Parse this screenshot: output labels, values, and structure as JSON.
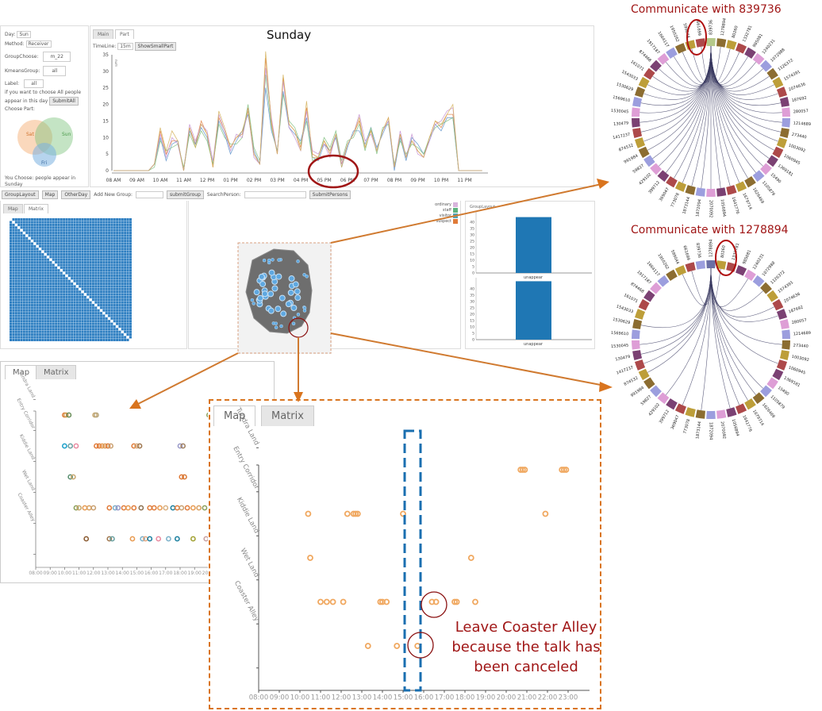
{
  "controls": {
    "day_label": "Day:",
    "day_value": "Sun",
    "method_label": "Method:",
    "method_value": "Receiver",
    "group_label": "GroupChoose:",
    "group_value": "m_22",
    "kmeans_label": "KmeansGroup:",
    "kmeans_value": "all",
    "label_label": "Label:",
    "label_value": "all",
    "hint_line1": "if you want to choose All people",
    "hint_line2": "appear in this day",
    "submit_all": "SubmitAll",
    "choose_part": "Choose Part:",
    "venn": [
      "Sat",
      "Sun",
      "Fri"
    ],
    "you_choose_line1": "You Choose: people appear in",
    "you_choose_line2": "Sunday"
  },
  "timeline": {
    "tabs": [
      "Main",
      "Part"
    ],
    "active_tab": "Part",
    "timeline_label": "TimeLine:",
    "timeline_value": "15m",
    "show_small_part": "ShowSmallPart",
    "title": "Sunday"
  },
  "toolbar": {
    "group_layout": "GroupLayout",
    "map": "Map",
    "other_day": "OtherDay",
    "add_group_label": "Add New Group:",
    "submit_group": "submitGroup",
    "search_label": "SearchPerson:",
    "submit_persons": "SubmitPersons"
  },
  "matrix_panel": {
    "tabs": [
      "Map",
      "Matrix"
    ],
    "active_tab": "Matrix",
    "color": "#2f7fc1"
  },
  "legend": [
    {
      "label": "ordinary",
      "color": "#d8b4dc"
    },
    {
      "label": "staff",
      "color": "#5db37e"
    },
    {
      "label": "visitor",
      "color": "#4fa3b8"
    },
    {
      "label": "suspect",
      "color": "#e07b39"
    }
  ],
  "group_layout": {
    "title": "GroupLayout",
    "charts": [
      {
        "category": "unappear",
        "value": 44,
        "ymax": 45
      },
      {
        "category": "unappear",
        "value": 46,
        "ymax": 45
      }
    ],
    "bar_color": "#1f77b4"
  },
  "chords": [
    {
      "title": "Communicate with 839736",
      "highlight": "839736",
      "connect_all": true
    },
    {
      "title": "Communicate with 1278894",
      "highlight": "1278894",
      "connect_all": false,
      "connected": [
        "661699",
        "599044",
        "80260",
        "1240231",
        "1126372",
        "2074636",
        "187692",
        "273440",
        "1060945",
        "1105879",
        "1626469",
        "1679714",
        "1641776",
        "1056894",
        "1873144",
        "369047",
        "429102",
        "874532",
        "1417237",
        "130479",
        "1530045",
        "1530629"
      ]
    }
  ],
  "chord_nodes": [
    "839736",
    "1278894",
    "80260",
    "1332781",
    "985081",
    "1240231",
    "1072988",
    "1126372",
    "1574391",
    "2074636",
    "187692",
    "280057",
    "1214689",
    "273440",
    "1003092",
    "1060945",
    "1369181",
    "15490",
    "1105879",
    "1626469",
    "1679714",
    "1641776",
    "1056894",
    "2070092",
    "1872094",
    "1873144",
    "773078",
    "369047",
    "399712",
    "429102",
    "59827",
    "991984",
    "874532",
    "1417237",
    "130479",
    "1530045",
    "1569610",
    "1530629",
    "1543033",
    "161071",
    "874468",
    "1917187",
    "1664117",
    "1950262",
    "599044",
    "661699"
  ],
  "map_small": {
    "tabs": [
      "Map",
      "Matrix"
    ],
    "active_tab": "Map"
  },
  "map_large": {
    "tabs": [
      "Map",
      "Matrix"
    ],
    "active_tab": "Map",
    "annotation": [
      "Leave Coaster Alley",
      "because the talk has",
      "been canceled"
    ]
  },
  "chart_data": [
    {
      "type": "line",
      "title": "Sunday",
      "ylabel": "num",
      "ylim": [
        0,
        35
      ],
      "yticks": [
        0,
        5,
        10,
        15,
        20,
        25,
        30,
        35
      ],
      "xticks": [
        "08 AM",
        "09 AM",
        "10 AM",
        "11 AM",
        "12 PM",
        "01 PM",
        "02 PM",
        "03 PM",
        "04 PM",
        "05 PM",
        "06 PM",
        "07 PM",
        "08 PM",
        "09 PM",
        "10 PM",
        "11 PM"
      ],
      "x_start": "08:00",
      "x_step_minutes": 15,
      "series": [
        {
          "color": "#e07b39",
          "values": [
            0,
            0,
            0,
            0,
            0,
            0,
            0,
            2,
            12,
            5,
            9,
            9,
            0,
            13,
            8,
            15,
            11,
            1,
            16,
            12,
            7,
            10,
            11,
            19,
            5,
            2,
            34,
            15,
            5,
            28,
            14,
            12,
            7,
            19,
            5,
            4,
            9,
            5,
            11,
            2,
            8,
            11,
            15,
            7,
            12,
            6,
            12,
            16,
            1,
            11,
            4,
            9,
            6,
            4,
            10,
            15,
            13,
            17,
            17,
            0,
            0,
            0,
            0,
            0
          ]
        },
        {
          "color": "#5b8fc9",
          "values": [
            0,
            0,
            0,
            0,
            0,
            0,
            0,
            2,
            10,
            3,
            8,
            9,
            0,
            12,
            8,
            13,
            10,
            2,
            15,
            11,
            5,
            9,
            12,
            17,
            6,
            2,
            25,
            12,
            6,
            24,
            13,
            11,
            9,
            16,
            4,
            3,
            8,
            6,
            10,
            1,
            7,
            12,
            12,
            8,
            13,
            7,
            11,
            15,
            0,
            10,
            3,
            10,
            8,
            5,
            9,
            14,
            12,
            16,
            16,
            0,
            0,
            0,
            0,
            0
          ]
        },
        {
          "color": "#7fbf7f",
          "values": [
            0,
            0,
            0,
            0,
            0,
            0,
            0,
            1,
            9,
            6,
            7,
            8,
            1,
            11,
            7,
            12,
            9,
            2,
            14,
            10,
            8,
            8,
            10,
            20,
            7,
            3,
            29,
            13,
            6,
            23,
            15,
            13,
            8,
            15,
            3,
            4,
            10,
            7,
            12,
            3,
            9,
            10,
            14,
            6,
            13,
            5,
            13,
            14,
            2,
            9,
            5,
            8,
            7,
            5,
            10,
            13,
            14,
            15,
            16,
            0,
            0,
            0,
            0,
            0
          ]
        },
        {
          "color": "#c58fd0",
          "values": [
            0,
            0,
            0,
            0,
            0,
            0,
            0,
            2,
            11,
            4,
            10,
            8,
            0,
            14,
            9,
            14,
            12,
            3,
            17,
            12,
            6,
            11,
            10,
            18,
            4,
            2,
            31,
            16,
            5,
            27,
            13,
            10,
            6,
            18,
            6,
            5,
            8,
            4,
            11,
            2,
            8,
            11,
            17,
            9,
            11,
            6,
            12,
            15,
            1,
            12,
            4,
            11,
            5,
            4,
            9,
            14,
            15,
            18,
            19,
            0,
            0,
            0,
            0,
            0
          ]
        },
        {
          "color": "#d4b05a",
          "values": [
            0,
            0,
            0,
            0,
            0,
            0,
            0,
            2,
            13,
            6,
            12,
            9,
            0,
            13,
            7,
            14,
            11,
            1,
            18,
            13,
            7,
            10,
            12,
            18,
            5,
            2,
            36,
            14,
            5,
            29,
            14,
            12,
            6,
            21,
            4,
            4,
            9,
            6,
            11,
            1,
            8,
            11,
            16,
            7,
            12,
            6,
            12,
            16,
            1,
            11,
            4,
            9,
            6,
            4,
            10,
            15,
            14,
            17,
            20,
            0,
            0,
            0,
            0,
            0
          ]
        }
      ]
    },
    {
      "type": "scatter",
      "categories": [
        "Tundra Land",
        "Entry Corridor",
        "Kiddie Land",
        "Wet Land",
        "Coaster Alley"
      ],
      "xticks": [
        "08:00",
        "09:00",
        "10:00",
        "11:00",
        "12:00",
        "13:00",
        "14:00",
        "15:00",
        "16:00",
        "17:00",
        "18:00",
        "19:00",
        "20:00",
        "21:00",
        "22:00",
        "23:00"
      ],
      "xlim": [
        8,
        24
      ],
      "points_color": "#f0a860",
      "points": [
        {
          "cat": "Tundra Land",
          "x": [
            20.7,
            20.8,
            20.9,
            22.7,
            22.8,
            22.9
          ]
        },
        {
          "cat": "Entry Corridor",
          "x": [
            10.4,
            12.3,
            12.6,
            12.7,
            12.8,
            15.0,
            21.9
          ]
        },
        {
          "cat": "Kiddie Land",
          "x": [
            10.5,
            18.3
          ]
        },
        {
          "cat": "Wet Land",
          "x": [
            11.0,
            11.3,
            11.6,
            12.1,
            13.9,
            14.0,
            14.2,
            16.4,
            16.6,
            17.5,
            17.6,
            18.5
          ]
        },
        {
          "cat": "Coaster Alley",
          "x": [
            13.3,
            14.7,
            15.7
          ]
        }
      ]
    },
    {
      "type": "scatter",
      "categories": [
        "Tundra Land",
        "Entry Corridor",
        "Kiddie Land",
        "Wet Land",
        "Coaster Alley"
      ],
      "xticks": [
        "08:00",
        "09:00",
        "10:00",
        "11:00",
        "12:00",
        "13:00",
        "14:00",
        "15:00",
        "16:00",
        "17:00",
        "18:00",
        "19:00",
        "20:00"
      ],
      "xlim": [
        8,
        20
      ],
      "points": [
        {
          "cat": "Tundra Land",
          "x": [
            10.0,
            10.1,
            10.3,
            12.1,
            12.2,
            20.0
          ],
          "colors": [
            "#e07b39",
            "#d4a05a",
            "#6a8f5a",
            "#c9a870",
            "#b8a880",
            "#8a9f5a"
          ]
        },
        {
          "cat": "Entry Corridor",
          "x": [
            10.0,
            10.4,
            10.8,
            12.2,
            12.4,
            12.6,
            12.8,
            13.0,
            13.2,
            14.8,
            15.0,
            15.2,
            18.0,
            18.2
          ],
          "colors": [
            "#1a9fc9",
            "#6aa0a0",
            "#e88aa0",
            "#e07b39",
            "#e07b39",
            "#e89a50",
            "#d9a060",
            "#e07b39",
            "#c9a070",
            "#e07b39",
            "#d9b080",
            "#a07850",
            "#9a9ac9",
            "#a08060"
          ]
        },
        {
          "cat": "Kiddie Land",
          "x": [
            10.4,
            10.6,
            18.1,
            18.3
          ],
          "colors": [
            "#5a8f70",
            "#c9a870",
            "#e07b39",
            "#d97b39"
          ]
        },
        {
          "cat": "Wet Land",
          "x": [
            10.8,
            11.0,
            11.4,
            11.7,
            12.0,
            13.1,
            13.5,
            13.7,
            14.1,
            14.4,
            14.8,
            15.3,
            15.9,
            16.2,
            16.6,
            17.0,
            17.5,
            17.8,
            18.1,
            18.5,
            18.9,
            19.3,
            19.7
          ],
          "colors": [
            "#8a9f5a",
            "#c9a870",
            "#e89a50",
            "#d9a060",
            "#c9a070",
            "#e07b39",
            "#7ab0c9",
            "#9a9ac9",
            "#e07b39",
            "#e89a50",
            "#e07b39",
            "#8a7050",
            "#e07b39",
            "#e07b39",
            "#e89a50",
            "#d9b080",
            "#1a7f9f",
            "#e07b39",
            "#c9a070",
            "#e07b39",
            "#e89a50",
            "#d9a060",
            "#8a9f5a"
          ]
        },
        {
          "cat": "Coaster Alley",
          "x": [
            11.5,
            13.1,
            13.3,
            14.7,
            15.4,
            15.6,
            15.9,
            16.5,
            17.2,
            17.8,
            18.9,
            19.8
          ],
          "colors": [
            "#8a5a30",
            "#a07850",
            "#6aa0a0",
            "#e89a50",
            "#7ab0c9",
            "#e8a880",
            "#1a7f9f",
            "#e88aa0",
            "#7ab0c9",
            "#1a7f9f",
            "#a0a030",
            "#c9a0a0"
          ]
        }
      ]
    }
  ]
}
